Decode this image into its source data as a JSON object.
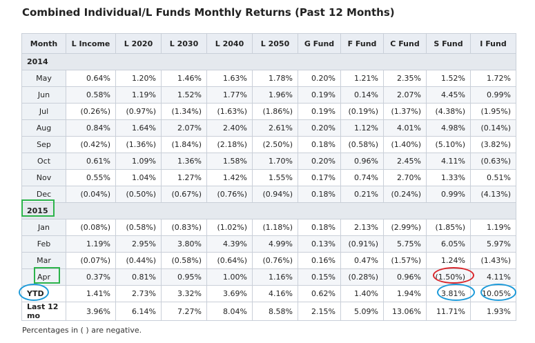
{
  "title": "Combined Individual/L Funds Monthly Returns (Past 12 Months)",
  "headers": [
    "Month",
    "L Income",
    "L 2020",
    "L 2030",
    "L 2040",
    "L 2050",
    "G Fund",
    "F Fund",
    "C Fund",
    "S Fund",
    "I Fund"
  ],
  "years": [
    {
      "label": "2014",
      "rows": [
        {
          "month": "May",
          "values": [
            "0.64%",
            "1.20%",
            "1.46%",
            "1.63%",
            "1.78%",
            "0.20%",
            "1.21%",
            "2.35%",
            "1.52%",
            "1.72%"
          ]
        },
        {
          "month": "Jun",
          "values": [
            "0.58%",
            "1.19%",
            "1.52%",
            "1.77%",
            "1.96%",
            "0.19%",
            "0.14%",
            "2.07%",
            "4.45%",
            "0.99%"
          ]
        },
        {
          "month": "Jul",
          "values": [
            "(0.26%)",
            "(0.97%)",
            "(1.34%)",
            "(1.63%)",
            "(1.86%)",
            "0.19%",
            "(0.19%)",
            "(1.37%)",
            "(4.38%)",
            "(1.95%)"
          ]
        },
        {
          "month": "Aug",
          "values": [
            "0.84%",
            "1.64%",
            "2.07%",
            "2.40%",
            "2.61%",
            "0.20%",
            "1.12%",
            "4.01%",
            "4.98%",
            "(0.14%)"
          ]
        },
        {
          "month": "Sep",
          "values": [
            "(0.42%)",
            "(1.36%)",
            "(1.84%)",
            "(2.18%)",
            "(2.50%)",
            "0.18%",
            "(0.58%)",
            "(1.40%)",
            "(5.10%)",
            "(3.82%)"
          ]
        },
        {
          "month": "Oct",
          "values": [
            "0.61%",
            "1.09%",
            "1.36%",
            "1.58%",
            "1.70%",
            "0.20%",
            "0.96%",
            "2.45%",
            "4.11%",
            "(0.63%)"
          ]
        },
        {
          "month": "Nov",
          "values": [
            "0.55%",
            "1.04%",
            "1.27%",
            "1.42%",
            "1.55%",
            "0.17%",
            "0.74%",
            "2.70%",
            "1.33%",
            "0.51%"
          ]
        },
        {
          "month": "Dec",
          "values": [
            "(0.04%)",
            "(0.50%)",
            "(0.67%)",
            "(0.76%)",
            "(0.94%)",
            "0.18%",
            "0.21%",
            "(0.24%)",
            "0.99%",
            "(4.13%)"
          ]
        }
      ]
    },
    {
      "label": "2015",
      "rows": [
        {
          "month": "Jan",
          "values": [
            "(0.08%)",
            "(0.58%)",
            "(0.83%)",
            "(1.02%)",
            "(1.18%)",
            "0.18%",
            "2.13%",
            "(2.99%)",
            "(1.85%)",
            "1.19%"
          ]
        },
        {
          "month": "Feb",
          "values": [
            "1.19%",
            "2.95%",
            "3.80%",
            "4.39%",
            "4.99%",
            "0.13%",
            "(0.91%)",
            "5.75%",
            "6.05%",
            "5.97%"
          ]
        },
        {
          "month": "Mar",
          "values": [
            "(0.07%)",
            "(0.44%)",
            "(0.58%)",
            "(0.64%)",
            "(0.76%)",
            "0.16%",
            "0.47%",
            "(1.57%)",
            "1.24%",
            "(1.43%)"
          ]
        },
        {
          "month": "Apr",
          "values": [
            "0.37%",
            "0.81%",
            "0.95%",
            "1.00%",
            "1.16%",
            "0.15%",
            "(0.28%)",
            "0.96%",
            "(1.50%)",
            "4.11%"
          ]
        }
      ]
    }
  ],
  "ytd": {
    "label": "YTD",
    "values": [
      "1.41%",
      "2.73%",
      "3.32%",
      "3.69%",
      "4.16%",
      "0.62%",
      "1.40%",
      "1.94%",
      "3.81%",
      "10.05%"
    ]
  },
  "last12": {
    "label": "Last 12 mo",
    "values": [
      "3.96%",
      "6.14%",
      "7.27%",
      "8.04%",
      "8.58%",
      "2.15%",
      "5.09%",
      "13.06%",
      "11.71%",
      "1.93%"
    ]
  },
  "footnote": "Percentages in (   ) are negative.",
  "annotation_colors": {
    "green": "#2bb34a",
    "red": "#d9262b",
    "blue": "#1c9ad9"
  }
}
